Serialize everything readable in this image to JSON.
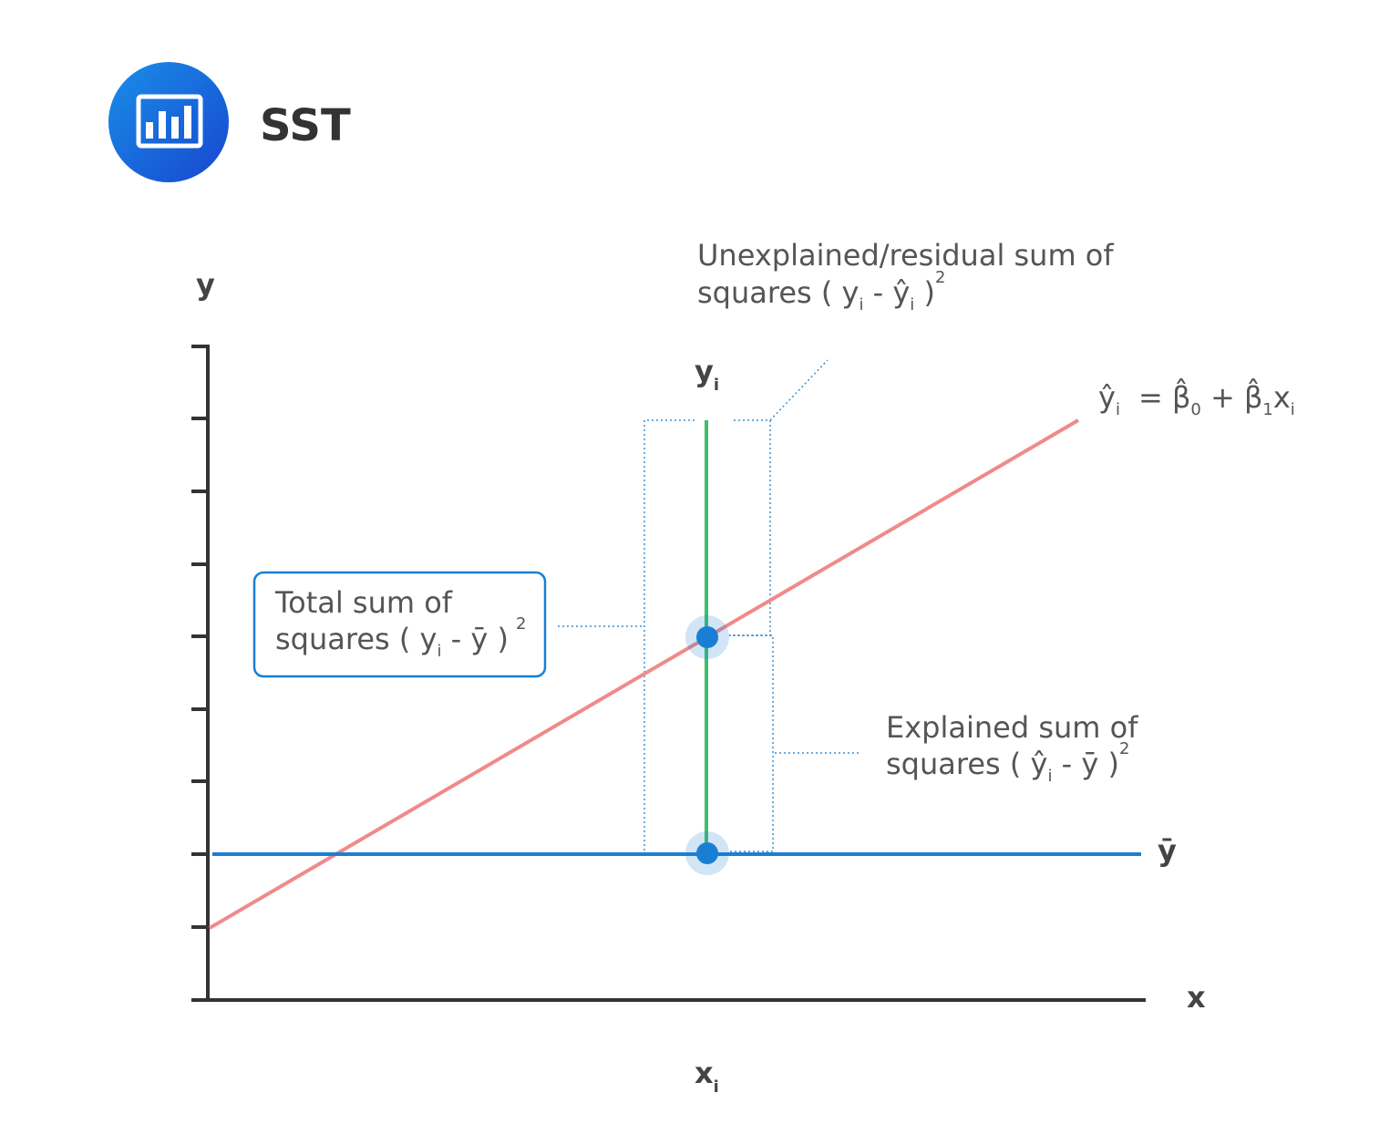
{
  "header": {
    "title": "SST"
  },
  "axes": {
    "y_label": "y",
    "x_label": "x"
  },
  "labels": {
    "yi": [
      "y",
      "i"
    ],
    "xi": [
      "x",
      "i"
    ],
    "ybar": "ȳ",
    "regression": [
      "ŷ",
      "i",
      "= β̂",
      "0",
      " + β̂",
      "1",
      "x",
      "i"
    ]
  },
  "annotations": {
    "residual": {
      "line1": "Unexplained/residual sum of",
      "line2": [
        "squares ( y",
        "i",
        " - ŷ",
        "i",
        " )",
        "2"
      ]
    },
    "total": {
      "line1": "Total sum of",
      "line2": [
        "squares ( y",
        "i",
        " - ȳ )",
        "2"
      ]
    },
    "explained": {
      "line1": "Explained sum of",
      "line2": [
        "squares ( ŷ",
        "i",
        " - ȳ )",
        "2"
      ]
    }
  }
}
